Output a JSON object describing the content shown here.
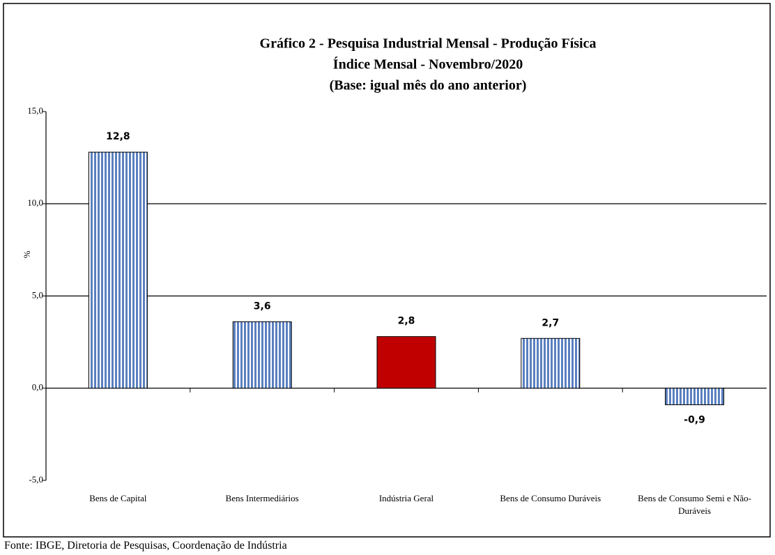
{
  "chart_data": {
    "type": "bar",
    "title_lines": [
      "Gráfico 2 - Pesquisa Industrial Mensal - Produção Física",
      "Índice Mensal - Novembro/2020",
      "(Base: igual mês do ano anterior)"
    ],
    "y_label": "%",
    "categories": [
      "Bens de Capital",
      "Bens Intermediários",
      "Indústria Geral",
      "Bens de Consumo Duráveis",
      "Bens de Consumo Semi e Não-Duráveis"
    ],
    "values": [
      12.8,
      3.6,
      2.8,
      2.7,
      -0.9
    ],
    "value_labels": [
      "12,8",
      "3,6",
      "2,8",
      "2,7",
      "-0,9"
    ],
    "colors": [
      "#5b80c0",
      "#5b80c0",
      "#c00000",
      "#5b80c0",
      "#5b80c0"
    ],
    "striped": [
      true,
      true,
      false,
      true,
      true
    ],
    "ylim": [
      -5,
      15
    ],
    "yticks": [
      {
        "value": -5,
        "label": "-5,0"
      },
      {
        "value": 0,
        "label": "0,0"
      },
      {
        "value": 5,
        "label": "5,0"
      },
      {
        "value": 10,
        "label": "10,0"
      },
      {
        "value": 15,
        "label": "15,0"
      }
    ],
    "grid": true,
    "source": "Fonte: IBGE, Diretoria de Pesquisas, Coordenação de Indústria"
  }
}
